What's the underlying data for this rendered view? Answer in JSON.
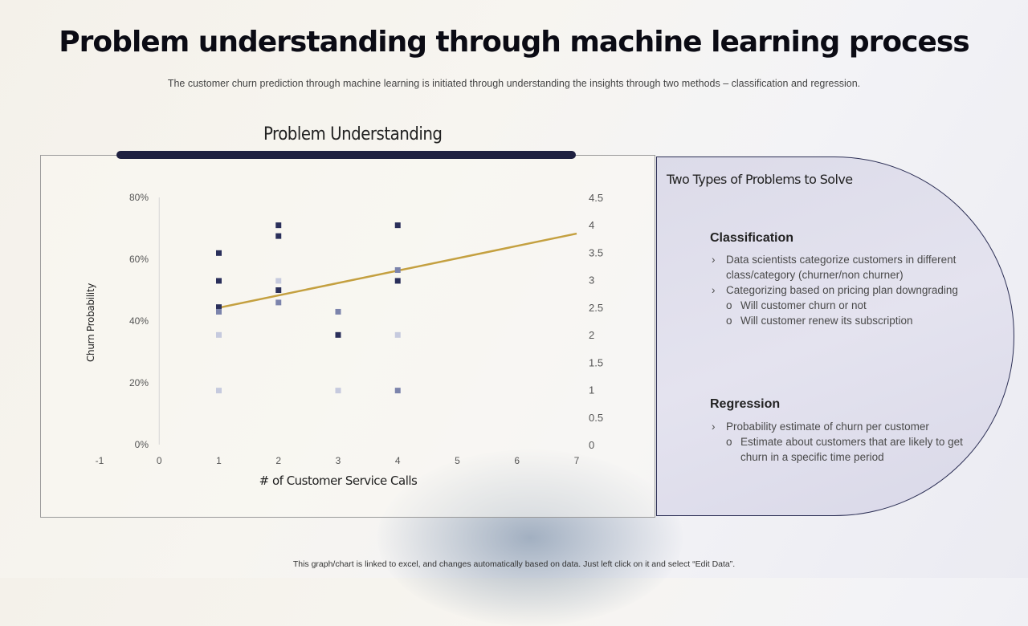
{
  "slide": {
    "title": "Problem understanding through machine learning process",
    "subtitle": "The customer churn prediction through machine learning is initiated through understanding the insights through two methods – classification and regression.",
    "section_title": "Problem Understanding",
    "footer": "This graph/chart is linked to excel, and changes automatically based on data. Just left click on it and select “Edit Data”."
  },
  "panel": {
    "title": "Two Types of Problems to Solve",
    "classification": {
      "heading": "Classification",
      "items": [
        {
          "level": 1,
          "text": "Data scientists categorize customers in different class/category (churner/non churner)"
        },
        {
          "level": 1,
          "text": "Categorizing based on pricing plan downgrading"
        },
        {
          "level": 2,
          "text": "Will customer churn or not"
        },
        {
          "level": 2,
          "text": "Will customer renew its subscription"
        }
      ]
    },
    "regression": {
      "heading": "Regression",
      "items": [
        {
          "level": 1,
          "text": "Probability estimate of churn per customer"
        },
        {
          "level": 2,
          "text": "Estimate about customers that are likely to get churn in a specific time period"
        }
      ]
    }
  },
  "colors": {
    "dark_marker": "#2a2f5a",
    "mid_marker": "#7c84ac",
    "light_marker": "#c6cade",
    "trendline": "#c4a040",
    "accent_bar": "#1e2040"
  },
  "chart_data": {
    "type": "scatter",
    "xlabel": "# of Customer Service Calls",
    "ylabel": "Churn Probability",
    "x_ticks": [
      "-1",
      "0",
      "1",
      "2",
      "3",
      "4",
      "5",
      "6",
      "7"
    ],
    "y_left_ticks": [
      "0%",
      "20%",
      "40%",
      "60%",
      "80%"
    ],
    "y_right_ticks": [
      "0",
      "0.5",
      "1",
      "1.5",
      "2",
      "2.5",
      "3",
      "3.5",
      "4",
      "4.5"
    ],
    "xlim": [
      -1,
      7
    ],
    "ylim_left": [
      0,
      0.8
    ],
    "ylim_right": [
      0,
      4.5
    ],
    "grid": false,
    "points": [
      {
        "x": 1,
        "y": 0.62,
        "shade": "dark"
      },
      {
        "x": 1,
        "y": 0.53,
        "shade": "dark"
      },
      {
        "x": 1,
        "y": 0.445,
        "shade": "dark"
      },
      {
        "x": 1,
        "y": 0.43,
        "shade": "mid"
      },
      {
        "x": 1,
        "y": 0.355,
        "shade": "light"
      },
      {
        "x": 1,
        "y": 0.175,
        "shade": "light"
      },
      {
        "x": 2,
        "y": 0.71,
        "shade": "dark"
      },
      {
        "x": 2,
        "y": 0.675,
        "shade": "dark"
      },
      {
        "x": 2,
        "y": 0.53,
        "shade": "light"
      },
      {
        "x": 2,
        "y": 0.5,
        "shade": "dark"
      },
      {
        "x": 2,
        "y": 0.46,
        "shade": "mid"
      },
      {
        "x": 3,
        "y": 0.43,
        "shade": "mid"
      },
      {
        "x": 3,
        "y": 0.355,
        "shade": "dark"
      },
      {
        "x": 3,
        "y": 0.175,
        "shade": "light"
      },
      {
        "x": 4,
        "y": 0.71,
        "shade": "dark"
      },
      {
        "x": 4,
        "y": 0.565,
        "shade": "mid"
      },
      {
        "x": 4,
        "y": 0.53,
        "shade": "dark"
      },
      {
        "x": 4,
        "y": 0.355,
        "shade": "light"
      },
      {
        "x": 4,
        "y": 0.175,
        "shade": "mid"
      }
    ],
    "trendline": {
      "x": [
        1,
        7
      ],
      "y": [
        0.443,
        0.683
      ]
    }
  }
}
